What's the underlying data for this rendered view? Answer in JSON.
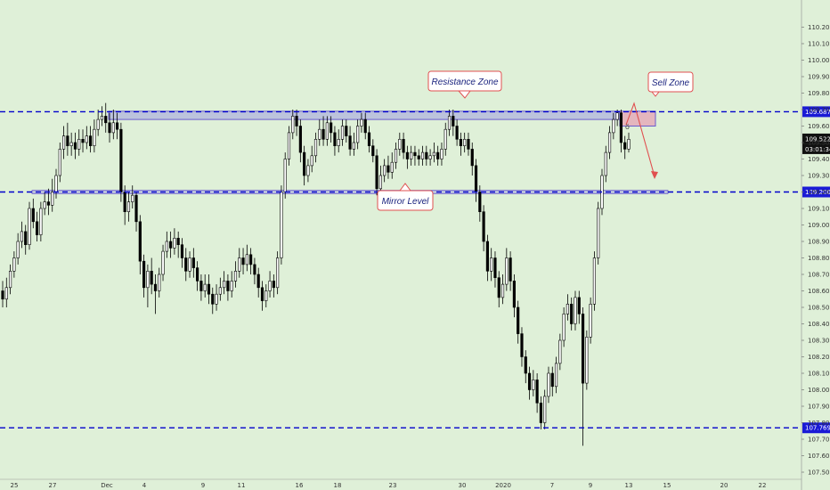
{
  "chart_data": {
    "type": "candlestick",
    "colors": {
      "background": "#dff0d8",
      "candle_up": "#ffffff",
      "candle_down": "#000000",
      "level_line": "#0000cc",
      "zone_fill": "#9e9ee0",
      "sell_zone_fill": "#e6a3b5",
      "arrow": "#e05050",
      "label_bg": "#ffffff",
      "label_border": "#e05050",
      "price_badge_blue": "#1a1ad6",
      "price_badge_black": "#111111"
    },
    "y_axis": {
      "min": 107.5,
      "max": 110.3,
      "ticks": [
        "110.200",
        "110.100",
        "110.000",
        "109.900",
        "109.800",
        "109.700",
        "109.600",
        "109.500",
        "109.400",
        "109.300",
        "109.200",
        "109.100",
        "109.000",
        "108.900",
        "108.800",
        "108.700",
        "108.600",
        "108.500",
        "108.400",
        "108.300",
        "108.200",
        "108.100",
        "108.000",
        "107.900",
        "107.800",
        "107.700",
        "107.600",
        "107.500"
      ]
    },
    "x_axis": {
      "ticks": [
        "25",
        "27",
        "Dec",
        "4",
        "9",
        "11",
        "16",
        "18",
        "23",
        "30",
        "2020",
        "7",
        "9",
        "13",
        "15",
        "20",
        "22"
      ]
    },
    "levels": [
      {
        "price": 109.687,
        "label": "109.687"
      },
      {
        "price": 109.2,
        "label": "109.200"
      },
      {
        "price": 107.769,
        "label": "107.769"
      }
    ],
    "current_price": {
      "label": "109.522",
      "countdown": "03:01:34"
    },
    "annotations": {
      "resistance": "Resistance Zone",
      "mirror": "Mirror Level",
      "sell": "Sell Zone"
    },
    "candles": [
      [
        108.6,
        108.55,
        108.66,
        108.5
      ],
      [
        108.55,
        108.62,
        108.68,
        108.5
      ],
      [
        108.62,
        108.72,
        108.76,
        108.58
      ],
      [
        108.72,
        108.8,
        108.84,
        108.68
      ],
      [
        108.8,
        108.9,
        108.95,
        108.76
      ],
      [
        108.9,
        108.96,
        109.02,
        108.86
      ],
      [
        108.96,
        108.88,
        109.0,
        108.82
      ],
      [
        108.88,
        109.1,
        109.14,
        108.85
      ],
      [
        109.1,
        109.02,
        109.16,
        108.98
      ],
      [
        109.02,
        108.94,
        109.08,
        108.9
      ],
      [
        108.94,
        109.1,
        109.14,
        108.9
      ],
      [
        109.1,
        109.14,
        109.2,
        109.06
      ],
      [
        109.14,
        109.12,
        109.22,
        109.06
      ],
      [
        109.12,
        109.2,
        109.28,
        109.08
      ],
      [
        109.2,
        109.3,
        109.34,
        109.16
      ],
      [
        109.3,
        109.46,
        109.5,
        109.26
      ],
      [
        109.46,
        109.54,
        109.6,
        109.4
      ],
      [
        109.54,
        109.48,
        109.62,
        109.42
      ],
      [
        109.48,
        109.5,
        109.56,
        109.42
      ],
      [
        109.5,
        109.46,
        109.56,
        109.4
      ],
      [
        109.46,
        109.52,
        109.58,
        109.42
      ],
      [
        109.52,
        109.5,
        109.58,
        109.44
      ],
      [
        109.5,
        109.54,
        109.6,
        109.46
      ],
      [
        109.54,
        109.48,
        109.6,
        109.44
      ],
      [
        109.48,
        109.58,
        109.64,
        109.44
      ],
      [
        109.58,
        109.64,
        109.7,
        109.54
      ],
      [
        109.64,
        109.66,
        109.72,
        109.6
      ],
      [
        109.66,
        109.62,
        109.74,
        109.56
      ],
      [
        109.62,
        109.56,
        109.68,
        109.5
      ],
      [
        109.56,
        109.62,
        109.7,
        109.52
      ],
      [
        109.62,
        109.58,
        109.68,
        109.52
      ],
      [
        109.58,
        109.2,
        109.62,
        109.14
      ],
      [
        109.2,
        109.08,
        109.24,
        109.0
      ],
      [
        109.08,
        109.14,
        109.2,
        109.02
      ],
      [
        109.14,
        109.18,
        109.24,
        109.1
      ],
      [
        109.18,
        109.02,
        109.2,
        108.96
      ],
      [
        109.02,
        108.78,
        109.06,
        108.7
      ],
      [
        108.78,
        108.62,
        108.82,
        108.56
      ],
      [
        108.62,
        108.72,
        108.76,
        108.5
      ],
      [
        108.72,
        108.64,
        108.8,
        108.58
      ],
      [
        108.64,
        108.6,
        108.7,
        108.46
      ],
      [
        108.6,
        108.7,
        108.74,
        108.56
      ],
      [
        108.7,
        108.84,
        108.88,
        108.66
      ],
      [
        108.84,
        108.9,
        108.96,
        108.8
      ],
      [
        108.9,
        108.86,
        108.96,
        108.8
      ],
      [
        108.86,
        108.92,
        108.98,
        108.82
      ],
      [
        108.92,
        108.88,
        108.96,
        108.8
      ],
      [
        108.88,
        108.8,
        108.92,
        108.74
      ],
      [
        108.8,
        108.72,
        108.86,
        108.66
      ],
      [
        108.72,
        108.8,
        108.84,
        108.68
      ],
      [
        108.8,
        108.74,
        108.86,
        108.68
      ],
      [
        108.74,
        108.66,
        108.78,
        108.6
      ],
      [
        108.66,
        108.6,
        108.7,
        108.54
      ],
      [
        108.6,
        108.64,
        108.7,
        108.56
      ],
      [
        108.64,
        108.58,
        108.7,
        108.52
      ],
      [
        108.58,
        108.52,
        108.62,
        108.46
      ],
      [
        108.52,
        108.58,
        108.64,
        108.48
      ],
      [
        108.58,
        108.62,
        108.68,
        108.54
      ],
      [
        108.62,
        108.66,
        108.72,
        108.58
      ],
      [
        108.66,
        108.6,
        108.7,
        108.54
      ],
      [
        108.6,
        108.66,
        108.72,
        108.56
      ],
      [
        108.66,
        108.72,
        108.78,
        108.62
      ],
      [
        108.72,
        108.8,
        108.86,
        108.68
      ],
      [
        108.8,
        108.76,
        108.86,
        108.7
      ],
      [
        108.76,
        108.82,
        108.88,
        108.72
      ],
      [
        108.82,
        108.76,
        108.86,
        108.7
      ],
      [
        108.76,
        108.7,
        108.8,
        108.64
      ],
      [
        108.7,
        108.62,
        108.74,
        108.56
      ],
      [
        108.62,
        108.54,
        108.66,
        108.48
      ],
      [
        108.54,
        108.6,
        108.64,
        108.5
      ],
      [
        108.6,
        108.66,
        108.72,
        108.56
      ],
      [
        108.66,
        108.62,
        108.7,
        108.56
      ],
      [
        108.62,
        108.8,
        108.84,
        108.58
      ],
      [
        108.8,
        109.2,
        109.24,
        108.76
      ],
      [
        109.2,
        109.4,
        109.44,
        109.16
      ],
      [
        109.4,
        109.56,
        109.6,
        109.36
      ],
      [
        109.56,
        109.66,
        109.7,
        109.52
      ],
      [
        109.66,
        109.6,
        109.7,
        109.54
      ],
      [
        109.6,
        109.44,
        109.64,
        109.38
      ],
      [
        109.44,
        109.3,
        109.48,
        109.24
      ],
      [
        109.3,
        109.36,
        109.4,
        109.26
      ],
      [
        109.36,
        109.42,
        109.48,
        109.32
      ],
      [
        109.42,
        109.52,
        109.56,
        109.38
      ],
      [
        109.52,
        109.58,
        109.64,
        109.48
      ],
      [
        109.58,
        109.52,
        109.66,
        109.48
      ],
      [
        109.52,
        109.62,
        109.66,
        109.48
      ],
      [
        109.62,
        109.56,
        109.66,
        109.5
      ],
      [
        109.56,
        109.48,
        109.6,
        109.42
      ],
      [
        109.48,
        109.52,
        109.58,
        109.44
      ],
      [
        109.52,
        109.6,
        109.64,
        109.48
      ],
      [
        109.6,
        109.54,
        109.64,
        109.5
      ],
      [
        109.54,
        109.46,
        109.6,
        109.42
      ],
      [
        109.46,
        109.5,
        109.56,
        109.42
      ],
      [
        109.5,
        109.6,
        109.64,
        109.46
      ],
      [
        109.6,
        109.64,
        109.68,
        109.56
      ],
      [
        109.64,
        109.56,
        109.68,
        109.52
      ],
      [
        109.56,
        109.48,
        109.6,
        109.44
      ],
      [
        109.48,
        109.42,
        109.52,
        109.38
      ],
      [
        109.42,
        109.22,
        109.46,
        109.18
      ],
      [
        109.22,
        109.3,
        109.36,
        109.2
      ],
      [
        109.3,
        109.36,
        109.4,
        109.26
      ],
      [
        109.36,
        109.32,
        109.42,
        109.28
      ],
      [
        109.32,
        109.38,
        109.44,
        109.28
      ],
      [
        109.38,
        109.46,
        109.5,
        109.34
      ],
      [
        109.46,
        109.52,
        109.56,
        109.42
      ],
      [
        109.52,
        109.44,
        109.56,
        109.4
      ],
      [
        109.44,
        109.4,
        109.48,
        109.34
      ],
      [
        109.4,
        109.44,
        109.48,
        109.36
      ],
      [
        109.44,
        109.42,
        109.48,
        109.36
      ],
      [
        109.42,
        109.4,
        109.46,
        109.36
      ],
      [
        109.4,
        109.44,
        109.48,
        109.36
      ],
      [
        109.44,
        109.4,
        109.48,
        109.36
      ],
      [
        109.4,
        109.42,
        109.46,
        109.36
      ],
      [
        109.42,
        109.44,
        109.5,
        109.38
      ],
      [
        109.44,
        109.4,
        109.48,
        109.36
      ],
      [
        109.4,
        109.46,
        109.5,
        109.36
      ],
      [
        109.46,
        109.58,
        109.62,
        109.42
      ],
      [
        109.58,
        109.66,
        109.7,
        109.54
      ],
      [
        109.66,
        109.6,
        109.7,
        109.54
      ],
      [
        109.6,
        109.52,
        109.64,
        109.48
      ],
      [
        109.52,
        109.48,
        109.56,
        109.42
      ],
      [
        109.48,
        109.52,
        109.56,
        109.44
      ],
      [
        109.52,
        109.46,
        109.56,
        109.42
      ],
      [
        109.46,
        109.36,
        109.5,
        109.3
      ],
      [
        109.36,
        109.2,
        109.4,
        109.14
      ],
      [
        109.2,
        109.08,
        109.24,
        109.02
      ],
      [
        109.08,
        108.9,
        109.12,
        108.84
      ],
      [
        108.9,
        108.72,
        108.94,
        108.66
      ],
      [
        108.72,
        108.8,
        108.86,
        108.66
      ],
      [
        108.8,
        108.68,
        108.84,
        108.62
      ],
      [
        108.68,
        108.56,
        108.72,
        108.5
      ],
      [
        108.56,
        108.64,
        108.7,
        108.52
      ],
      [
        108.64,
        108.8,
        108.86,
        108.6
      ],
      [
        108.8,
        108.66,
        108.84,
        108.6
      ],
      [
        108.66,
        108.5,
        108.7,
        108.44
      ],
      [
        108.5,
        108.34,
        108.54,
        108.28
      ],
      [
        108.34,
        108.2,
        108.38,
        108.14
      ],
      [
        108.2,
        108.1,
        108.24,
        108.04
      ],
      [
        108.1,
        108.0,
        108.14,
        107.94
      ],
      [
        108.0,
        108.06,
        108.12,
        107.96
      ],
      [
        108.06,
        107.92,
        108.1,
        107.86
      ],
      [
        107.92,
        107.8,
        107.96,
        107.76
      ],
      [
        107.8,
        107.96,
        108.0,
        107.76
      ],
      [
        107.96,
        108.1,
        108.14,
        107.92
      ],
      [
        108.1,
        108.02,
        108.14,
        107.96
      ],
      [
        108.02,
        108.16,
        108.2,
        107.98
      ],
      [
        108.16,
        108.3,
        108.34,
        108.12
      ],
      [
        108.3,
        108.46,
        108.5,
        108.26
      ],
      [
        108.46,
        108.52,
        108.58,
        108.42
      ],
      [
        108.52,
        108.4,
        108.56,
        108.36
      ],
      [
        108.4,
        108.56,
        108.6,
        108.36
      ],
      [
        108.56,
        108.46,
        108.6,
        108.4
      ],
      [
        108.46,
        108.04,
        108.5,
        107.66
      ],
      [
        108.04,
        108.32,
        108.36,
        108.0
      ],
      [
        108.32,
        108.52,
        108.56,
        108.28
      ],
      [
        108.52,
        108.8,
        108.84,
        108.48
      ],
      [
        108.8,
        109.1,
        109.14,
        108.76
      ],
      [
        109.1,
        109.3,
        109.34,
        109.06
      ],
      [
        109.3,
        109.44,
        109.48,
        109.26
      ],
      [
        109.44,
        109.56,
        109.6,
        109.4
      ],
      [
        109.56,
        109.64,
        109.68,
        109.52
      ],
      [
        109.64,
        109.68,
        109.7,
        109.6
      ],
      [
        109.68,
        109.5,
        109.7,
        109.44
      ],
      [
        109.5,
        109.46,
        109.54,
        109.4
      ],
      [
        109.46,
        109.52,
        109.56,
        109.44
      ]
    ]
  }
}
